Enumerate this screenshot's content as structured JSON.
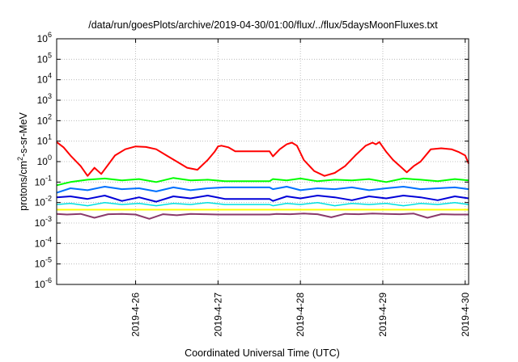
{
  "chart_data": {
    "type": "line",
    "title": "/data/run/goesPlots/archive/2019-04-30/01:00/flux/../flux/5daysMoonFluxes.txt",
    "xlabel": "Coordinated Universal Time (UTC)",
    "ylabel": {
      "main": "protons/cm",
      "sup": "2",
      "rest": "-s-sr-MeV"
    },
    "y_scale": "log",
    "ylim": [
      1e-06,
      1000000.0
    ],
    "y_ticks": [
      {
        "value": 1e-06,
        "base": "10",
        "exp": "-6"
      },
      {
        "value": 1e-05,
        "base": "10",
        "exp": "-5"
      },
      {
        "value": 0.0001,
        "base": "10",
        "exp": "-4"
      },
      {
        "value": 0.001,
        "base": "10",
        "exp": "-3"
      },
      {
        "value": 0.01,
        "base": "10",
        "exp": "-2"
      },
      {
        "value": 0.1,
        "base": "10",
        "exp": "-1"
      },
      {
        "value": 1,
        "base": "10",
        "exp": "0"
      },
      {
        "value": 10.0,
        "base": "10",
        "exp": "1"
      },
      {
        "value": 100.0,
        "base": "10",
        "exp": "2"
      },
      {
        "value": 1000.0,
        "base": "10",
        "exp": "3"
      },
      {
        "value": 10000.0,
        "base": "10",
        "exp": "4"
      },
      {
        "value": 100000.0,
        "base": "10",
        "exp": "5"
      },
      {
        "value": 1000000.0,
        "base": "10",
        "exp": "6"
      }
    ],
    "xlim": [
      "2019-04-25T01:00",
      "2019-04-30T01:00"
    ],
    "x_ticks": [
      {
        "value": "2019-04-26T00:00",
        "label": "2019-4-26"
      },
      {
        "value": "2019-04-27T00:00",
        "label": "2019-4-27"
      },
      {
        "value": "2019-04-28T00:00",
        "label": "2019-4-28"
      },
      {
        "value": "2019-04-29T00:00",
        "label": "2019-4-29"
      },
      {
        "value": "2019-04-30T00:00",
        "label": "2019-4-30"
      }
    ],
    "grid": true,
    "series": [
      {
        "color": "#ff0000",
        "width": 2,
        "x": [
          "2019-04-25T01:00",
          "2019-04-25T03:00",
          "2019-04-25T05:00",
          "2019-04-25T08:00",
          "2019-04-25T10:00",
          "2019-04-25T12:00",
          "2019-04-25T14:00",
          "2019-04-25T16:00",
          "2019-04-25T18:00",
          "2019-04-25T21:00",
          "2019-04-26T00:00",
          "2019-04-26T03:00",
          "2019-04-26T06:00",
          "2019-04-26T09:00",
          "2019-04-26T12:00",
          "2019-04-26T15:00",
          "2019-04-26T18:00",
          "2019-04-26T21:00",
          "2019-04-26T23:00",
          "2019-04-27T00:00",
          "2019-04-27T01:00",
          "2019-04-27T03:00",
          "2019-04-27T05:00",
          "2019-04-27T08:00",
          "2019-04-27T12:00",
          "2019-04-27T15:00",
          "2019-04-27T16:00",
          "2019-04-27T18:00",
          "2019-04-27T20:00",
          "2019-04-27T21:30",
          "2019-04-27T23:00",
          "2019-04-28T01:00",
          "2019-04-28T04:00",
          "2019-04-28T07:00",
          "2019-04-28T10:00",
          "2019-04-28T13:00",
          "2019-04-28T16:00",
          "2019-04-28T19:00",
          "2019-04-28T21:00",
          "2019-04-28T22:00",
          "2019-04-28T23:00",
          "2019-04-29T01:00",
          "2019-04-29T03:00",
          "2019-04-29T05:00",
          "2019-04-29T07:00",
          "2019-04-29T09:00",
          "2019-04-29T11:00",
          "2019-04-29T14:00",
          "2019-04-29T17:00",
          "2019-04-29T20:00",
          "2019-04-29T22:00",
          "2019-04-30T00:00",
          "2019-04-30T01:00"
        ],
        "y": [
          9,
          5,
          2,
          0.6,
          0.2,
          0.5,
          0.25,
          0.7,
          2,
          4,
          5.5,
          5.2,
          4,
          2,
          1,
          0.5,
          0.4,
          1.2,
          3,
          5.5,
          6,
          5,
          3.2,
          3.2,
          3.2,
          3.2,
          1.8,
          4,
          7,
          8.5,
          6,
          1.2,
          0.35,
          0.2,
          0.28,
          0.6,
          2,
          6,
          8.5,
          7,
          9,
          3,
          1.2,
          0.6,
          0.3,
          0.6,
          1,
          4,
          4.5,
          4,
          3,
          2,
          0.8
        ]
      },
      {
        "color": "#00ff00",
        "width": 2,
        "x": [
          "2019-04-25T01:00",
          "2019-04-25T05:00",
          "2019-04-25T10:00",
          "2019-04-25T15:00",
          "2019-04-25T20:00",
          "2019-04-26T01:00",
          "2019-04-26T06:00",
          "2019-04-26T11:00",
          "2019-04-26T16:00",
          "2019-04-26T21:00",
          "2019-04-27T02:00",
          "2019-04-27T15:00",
          "2019-04-27T16:00",
          "2019-04-27T20:00",
          "2019-04-28T00:00",
          "2019-04-28T05:00",
          "2019-04-28T10:00",
          "2019-04-28T15:00",
          "2019-04-28T20:00",
          "2019-04-29T01:00",
          "2019-04-29T06:00",
          "2019-04-29T11:00",
          "2019-04-29T16:00",
          "2019-04-29T21:00",
          "2019-04-30T01:00"
        ],
        "y": [
          0.07,
          0.1,
          0.13,
          0.15,
          0.12,
          0.14,
          0.1,
          0.16,
          0.12,
          0.13,
          0.11,
          0.11,
          0.14,
          0.12,
          0.15,
          0.11,
          0.13,
          0.12,
          0.14,
          0.1,
          0.15,
          0.13,
          0.11,
          0.14,
          0.12
        ]
      },
      {
        "color": "#0070ff",
        "width": 2,
        "x": [
          "2019-04-25T01:00",
          "2019-04-25T05:00",
          "2019-04-25T10:00",
          "2019-04-25T15:00",
          "2019-04-25T20:00",
          "2019-04-26T01:00",
          "2019-04-26T06:00",
          "2019-04-26T11:00",
          "2019-04-26T16:00",
          "2019-04-26T21:00",
          "2019-04-27T02:00",
          "2019-04-27T15:00",
          "2019-04-27T16:00",
          "2019-04-27T20:00",
          "2019-04-28T00:00",
          "2019-04-28T05:00",
          "2019-04-28T10:00",
          "2019-04-28T15:00",
          "2019-04-28T20:00",
          "2019-04-29T01:00",
          "2019-04-29T06:00",
          "2019-04-29T11:00",
          "2019-04-29T16:00",
          "2019-04-29T21:00",
          "2019-04-30T01:00"
        ],
        "y": [
          0.03,
          0.05,
          0.04,
          0.06,
          0.045,
          0.05,
          0.035,
          0.055,
          0.04,
          0.05,
          0.055,
          0.055,
          0.045,
          0.06,
          0.04,
          0.05,
          0.045,
          0.055,
          0.04,
          0.05,
          0.06,
          0.045,
          0.05,
          0.055,
          0.045
        ]
      },
      {
        "color": "#0000d8",
        "width": 2,
        "x": [
          "2019-04-25T01:00",
          "2019-04-25T05:00",
          "2019-04-25T10:00",
          "2019-04-25T15:00",
          "2019-04-25T20:00",
          "2019-04-26T01:00",
          "2019-04-26T06:00",
          "2019-04-26T11:00",
          "2019-04-26T16:00",
          "2019-04-26T21:00",
          "2019-04-27T02:00",
          "2019-04-27T15:00",
          "2019-04-27T16:00",
          "2019-04-27T20:00",
          "2019-04-28T00:00",
          "2019-04-28T05:00",
          "2019-04-28T10:00",
          "2019-04-28T15:00",
          "2019-04-28T20:00",
          "2019-04-29T01:00",
          "2019-04-29T06:00",
          "2019-04-29T11:00",
          "2019-04-29T16:00",
          "2019-04-29T21:00",
          "2019-04-30T01:00"
        ],
        "y": [
          0.018,
          0.02,
          0.015,
          0.022,
          0.012,
          0.018,
          0.011,
          0.02,
          0.016,
          0.022,
          0.015,
          0.015,
          0.012,
          0.02,
          0.016,
          0.022,
          0.018,
          0.013,
          0.02,
          0.016,
          0.022,
          0.018,
          0.013,
          0.02,
          0.016
        ]
      },
      {
        "color": "#00e0e0",
        "width": 1.5,
        "x": [
          "2019-04-25T01:00",
          "2019-04-25T05:00",
          "2019-04-25T10:00",
          "2019-04-25T15:00",
          "2019-04-25T20:00",
          "2019-04-26T01:00",
          "2019-04-26T06:00",
          "2019-04-26T11:00",
          "2019-04-26T16:00",
          "2019-04-26T21:00",
          "2019-04-27T02:00",
          "2019-04-27T15:00",
          "2019-04-27T16:00",
          "2019-04-27T20:00",
          "2019-04-28T00:00",
          "2019-04-28T05:00",
          "2019-04-28T10:00",
          "2019-04-28T15:00",
          "2019-04-28T20:00",
          "2019-04-29T01:00",
          "2019-04-29T06:00",
          "2019-04-29T11:00",
          "2019-04-29T16:00",
          "2019-04-29T21:00",
          "2019-04-30T01:00"
        ],
        "y": [
          0.008,
          0.009,
          0.007,
          0.01,
          0.008,
          0.009,
          0.007,
          0.009,
          0.008,
          0.01,
          0.008,
          0.008,
          0.007,
          0.009,
          0.008,
          0.01,
          0.007,
          0.009,
          0.008,
          0.009,
          0.007,
          0.009,
          0.008,
          0.01,
          0.008
        ]
      },
      {
        "color": "#ffff00",
        "width": 2,
        "x": [
          "2019-04-25T01:00",
          "2019-04-26T00:00",
          "2019-04-27T00:00",
          "2019-04-28T00:00",
          "2019-04-29T00:00",
          "2019-04-30T01:00"
        ],
        "y": [
          0.0045,
          0.0045,
          0.0045,
          0.0045,
          0.0045,
          0.0045
        ]
      },
      {
        "color": "#8b3a6b",
        "width": 2,
        "x": [
          "2019-04-25T01:00",
          "2019-04-25T04:00",
          "2019-04-25T08:00",
          "2019-04-25T12:00",
          "2019-04-25T16:00",
          "2019-04-25T20:00",
          "2019-04-26T00:00",
          "2019-04-26T04:00",
          "2019-04-26T08:00",
          "2019-04-26T12:00",
          "2019-04-26T16:00",
          "2019-04-26T20:00",
          "2019-04-27T00:00",
          "2019-04-27T15:00",
          "2019-04-27T17:00",
          "2019-04-27T21:00",
          "2019-04-28T01:00",
          "2019-04-28T05:00",
          "2019-04-28T09:00",
          "2019-04-28T13:00",
          "2019-04-28T17:00",
          "2019-04-28T21:00",
          "2019-04-29T01:00",
          "2019-04-29T05:00",
          "2019-04-29T09:00",
          "2019-04-29T13:00",
          "2019-04-29T17:00",
          "2019-04-29T21:00",
          "2019-04-30T01:00"
        ],
        "y": [
          0.0028,
          0.0026,
          0.0028,
          0.0018,
          0.0027,
          0.0028,
          0.0026,
          0.0016,
          0.0027,
          0.0024,
          0.0028,
          0.0027,
          0.0026,
          0.0026,
          0.0028,
          0.0027,
          0.0029,
          0.0027,
          0.0019,
          0.0028,
          0.0027,
          0.0029,
          0.0028,
          0.0027,
          0.0029,
          0.0018,
          0.0027,
          0.0026,
          0.0026
        ]
      }
    ]
  }
}
